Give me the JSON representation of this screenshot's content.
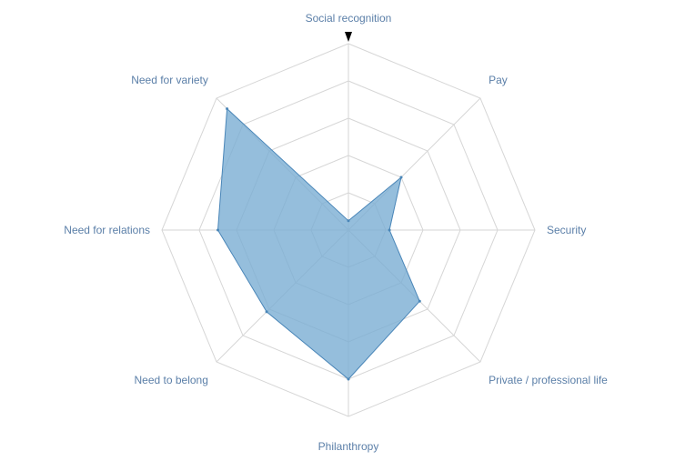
{
  "chart_data": {
    "type": "radar",
    "axes": [
      "Social recognition",
      "Pay",
      "Security",
      "Private / professional life",
      "Philanthropy",
      "Need to belong",
      "Need for relations",
      "Need for variety"
    ],
    "series": [
      {
        "values": [
          0.5,
          4.0,
          2.2,
          5.4,
          8.0,
          6.2,
          7.0,
          9.2
        ]
      }
    ],
    "rlim": [
      0,
      10
    ],
    "grid_levels": [
      2,
      4,
      6,
      8,
      10
    ],
    "grid": true,
    "legend": "none"
  },
  "colors": {
    "label": "#5b7fa8",
    "grid": "#d6d6d6",
    "fill": "#7aaed3",
    "stroke": "#4a86b8",
    "marker": "#000000"
  }
}
